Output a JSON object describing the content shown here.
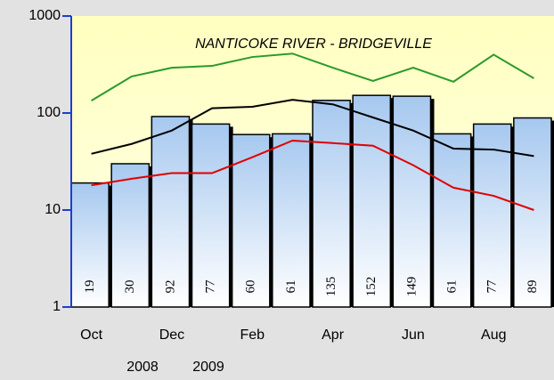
{
  "chart_data": {
    "type": "bar",
    "title": "NANTICOKE RIVER - BRIDGEVILLE",
    "categories": [
      "Oct",
      null,
      "Dec",
      null,
      "Feb",
      null,
      "Apr",
      null,
      "Jun",
      null,
      "Aug",
      null
    ],
    "values": [
      19,
      30,
      92,
      77,
      60,
      61,
      135,
      152,
      149,
      61,
      77,
      89
    ],
    "color": "#a6c8ef",
    "lines": [
      {
        "color": "#2a9a2a",
        "values": [
          134,
          238,
          293,
          306,
          378,
          410,
          293,
          214,
          293,
          210,
          400,
          228
        ]
      },
      {
        "color": "#000000",
        "values": [
          38,
          48,
          66,
          112,
          116,
          137,
          123,
          90,
          66,
          43,
          42,
          36
        ]
      },
      {
        "color": "#e00000",
        "values": [
          18,
          21,
          24,
          24,
          35,
          52,
          49,
          46,
          29,
          17,
          14,
          10
        ]
      }
    ],
    "year_labels": [
      "2008",
      "2009"
    ],
    "ylim": [
      1,
      1000
    ],
    "yticks": [
      1,
      10,
      100,
      1000
    ],
    "log_scale": true
  }
}
